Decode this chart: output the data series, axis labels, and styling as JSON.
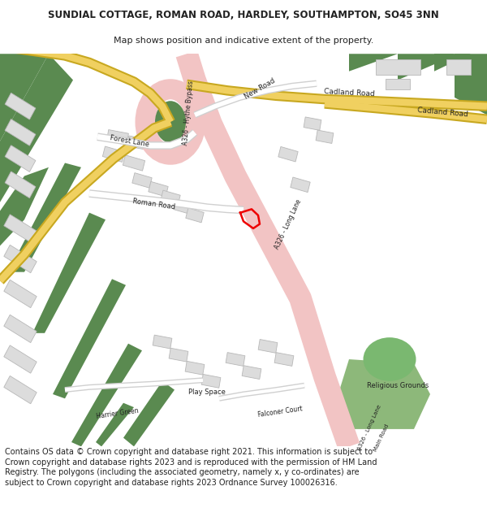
{
  "title_line1": "SUNDIAL COTTAGE, ROMAN ROAD, HARDLEY, SOUTHAMPTON, SO45 3NN",
  "title_line2": "Map shows position and indicative extent of the property.",
  "copyright_text": "Contains OS data © Crown copyright and database right 2021. This information is subject to Crown copyright and database rights 2023 and is reproduced with the permission of HM Land Registry. The polygons (including the associated geometry, namely x, y co-ordinates) are subject to Crown copyright and database rights 2023 Ordnance Survey 100026316.",
  "bg_color": "#ffffff",
  "map_bg": "#f0eeeb",
  "green_dark": "#5a8a50",
  "green_dark2": "#4a7845",
  "green_light": "#8db87a",
  "road_pink": "#f2c4c4",
  "road_pink_border": "#e8a8a8",
  "road_yellow": "#f0d060",
  "road_yellow_border": "#c8a820",
  "road_white": "#ffffff",
  "road_white_border": "#d0d0d0",
  "building_fill": "#dcdcdc",
  "building_edge": "#b8b8b8",
  "red_poly": "#ee0000",
  "text_dark": "#222222",
  "title1_size": 8.5,
  "title2_size": 8.0,
  "label_size": 6.0,
  "copy_size": 7.0
}
